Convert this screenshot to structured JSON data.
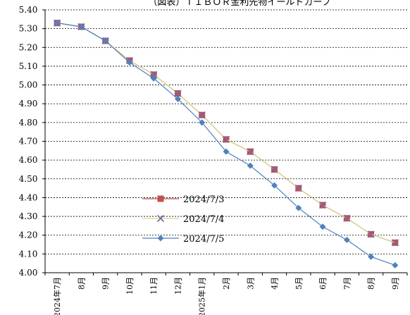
{
  "chart_data": {
    "type": "line",
    "title": "（図表）ＴＩＢＯＲ金利先物イールドカーブ",
    "categories": [
      "2024年7月",
      "8月",
      "9月",
      "10月",
      "11月",
      "12月",
      "2025年1月",
      "2月",
      "3月",
      "4月",
      "5月",
      "6月",
      "7月",
      "8月",
      "9月"
    ],
    "ylim": [
      4.0,
      5.4
    ],
    "yticks": [
      "5.40",
      "5.30",
      "5.20",
      "5.10",
      "5.00",
      "4.90",
      "4.80",
      "4.70",
      "4.60",
      "4.50",
      "4.40",
      "4.30",
      "4.20",
      "4.10",
      "4.00"
    ],
    "grid": "horizontal dashed",
    "legend_position": "center-left",
    "series": [
      {
        "name": "2024/7/3",
        "color": "#c0504d",
        "line_color": "#c0504d",
        "marker": "square",
        "values": [
          5.33,
          5.31,
          5.235,
          5.13,
          5.055,
          4.955,
          4.84,
          4.71,
          4.645,
          4.55,
          4.45,
          4.36,
          4.29,
          4.205,
          4.16
        ]
      },
      {
        "name": "2024/7/4",
        "color": "#8064a2",
        "line_color": "#d6d68a",
        "marker": "x",
        "values": [
          5.33,
          5.31,
          5.235,
          5.13,
          5.055,
          4.955,
          4.84,
          4.71,
          4.645,
          4.55,
          4.45,
          4.36,
          4.29,
          4.205,
          4.16
        ]
      },
      {
        "name": "2024/7/5",
        "color": "#4f81bd",
        "line_color": "#4f81bd",
        "marker": "diamond",
        "values": [
          5.33,
          5.31,
          5.235,
          5.12,
          5.035,
          4.925,
          4.8,
          4.645,
          4.57,
          4.465,
          4.345,
          4.245,
          4.175,
          4.085,
          4.04
        ]
      }
    ]
  }
}
